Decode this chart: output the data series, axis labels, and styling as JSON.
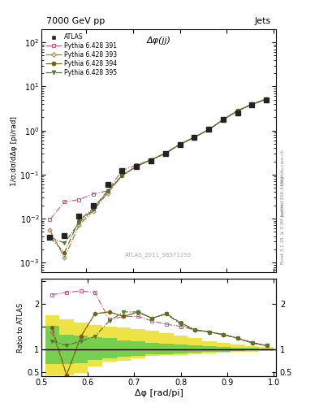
{
  "title_left": "7000 GeV pp",
  "title_right": "Jets",
  "xlabel": "Δφ [rad/pi]",
  "ylabel_main": "1/σ;dσ/dΔφ [pi/rad]",
  "ylabel_ratio": "Ratio to ATLAS",
  "annotation_main": "Δφ(jj)",
  "annotation_ref": "ATLAS_2011_S8971293",
  "right_label_top": "Rivet 3.1.10, ≥ 3.1M events",
  "right_label_bot": "[arXiv:1306.3436]",
  "mcplots": "mcplots.cern.ch",
  "atlas_x": [
    0.523,
    0.554,
    0.585,
    0.615,
    0.646,
    0.677,
    0.708,
    0.738,
    0.769,
    0.8,
    0.831,
    0.862,
    0.892,
    0.923,
    0.954,
    0.985
  ],
  "atlas_y": [
    0.0038,
    0.0042,
    0.0115,
    0.02,
    0.06,
    0.125,
    0.155,
    0.205,
    0.295,
    0.48,
    0.7,
    1.05,
    1.75,
    2.55,
    3.75,
    4.9
  ],
  "py391_x": [
    0.523,
    0.554,
    0.585,
    0.615,
    0.646,
    0.677,
    0.708,
    0.738,
    0.769,
    0.8,
    0.831,
    0.862,
    0.892,
    0.923,
    0.954,
    0.985
  ],
  "py391_y": [
    0.0095,
    0.024,
    0.027,
    0.036,
    0.043,
    0.125,
    0.165,
    0.215,
    0.295,
    0.48,
    0.7,
    1.05,
    1.75,
    2.8,
    3.9,
    5.1
  ],
  "py391_color": "#c06080",
  "py391_label": "Pythia 6.428 391",
  "py393_x": [
    0.523,
    0.554,
    0.585,
    0.615,
    0.646,
    0.677,
    0.708,
    0.738,
    0.769,
    0.8,
    0.831,
    0.862,
    0.892,
    0.923,
    0.954,
    0.985
  ],
  "py393_y": [
    0.0055,
    0.0013,
    0.007,
    0.015,
    0.038,
    0.095,
    0.155,
    0.215,
    0.305,
    0.48,
    0.7,
    1.05,
    1.75,
    2.8,
    4.0,
    5.2
  ],
  "py393_color": "#a07830",
  "py393_label": "Pythia 6.428 393",
  "py394_x": [
    0.523,
    0.554,
    0.585,
    0.615,
    0.646,
    0.677,
    0.708,
    0.738,
    0.769,
    0.8,
    0.831,
    0.862,
    0.892,
    0.923,
    0.954,
    0.985
  ],
  "py394_y": [
    0.0038,
    0.0017,
    0.009,
    0.017,
    0.043,
    0.095,
    0.155,
    0.215,
    0.305,
    0.49,
    0.71,
    1.05,
    1.75,
    2.8,
    4.0,
    5.2
  ],
  "py394_color": "#706020",
  "py394_label": "Pythia 6.428 394",
  "py395_x": [
    0.523,
    0.554,
    0.585,
    0.615,
    0.646,
    0.677,
    0.708,
    0.738,
    0.769,
    0.8,
    0.831,
    0.862,
    0.892,
    0.923,
    0.954,
    0.985
  ],
  "py395_y": [
    0.0038,
    0.0028,
    0.008,
    0.016,
    0.04,
    0.095,
    0.155,
    0.215,
    0.305,
    0.48,
    0.7,
    1.05,
    1.75,
    2.8,
    3.9,
    5.1
  ],
  "py395_color": "#507830",
  "py395_label": "Pythia 6.428 395",
  "ratio_x": [
    0.523,
    0.554,
    0.585,
    0.615,
    0.646,
    0.677,
    0.708,
    0.738,
    0.769,
    0.8,
    0.831,
    0.862,
    0.892,
    0.923,
    0.954,
    0.985
  ],
  "ratio_391_y": [
    2.2,
    2.25,
    2.28,
    2.25,
    1.65,
    1.72,
    1.72,
    1.62,
    1.55,
    1.5,
    1.42,
    1.38,
    1.32,
    1.24,
    1.14,
    1.08
  ],
  "ratio_393_y": [
    1.38,
    0.43,
    1.28,
    1.78,
    1.82,
    1.72,
    1.82,
    1.68,
    1.78,
    1.55,
    1.42,
    1.38,
    1.32,
    1.24,
    1.14,
    1.08
  ],
  "ratio_394_y": [
    1.48,
    0.43,
    1.28,
    1.78,
    1.82,
    1.72,
    1.82,
    1.68,
    1.78,
    1.58,
    1.43,
    1.38,
    1.32,
    1.24,
    1.14,
    1.08
  ],
  "ratio_395_y": [
    1.18,
    1.08,
    1.18,
    1.28,
    1.62,
    1.82,
    1.82,
    1.68,
    1.78,
    1.55,
    1.42,
    1.38,
    1.32,
    1.24,
    1.14,
    1.08
  ],
  "band_x_edges": [
    0.508,
    0.538,
    0.569,
    0.6,
    0.631,
    0.662,
    0.692,
    0.723,
    0.754,
    0.785,
    0.815,
    0.846,
    0.877,
    0.908,
    0.938,
    0.969,
    1.0
  ],
  "band_yellow_lo": [
    0.42,
    0.42,
    0.48,
    0.62,
    0.72,
    0.75,
    0.8,
    0.85,
    0.87,
    0.87,
    0.88,
    0.9,
    0.92,
    0.94,
    0.95,
    0.96
  ],
  "band_yellow_hi": [
    1.75,
    1.65,
    1.58,
    1.53,
    1.5,
    1.47,
    1.44,
    1.4,
    1.36,
    1.3,
    1.24,
    1.18,
    1.14,
    1.1,
    1.07,
    1.05
  ],
  "band_green_lo": [
    0.68,
    0.68,
    0.7,
    0.76,
    0.8,
    0.83,
    0.86,
    0.88,
    0.89,
    0.91,
    0.92,
    0.94,
    0.95,
    0.96,
    0.97,
    0.98
  ],
  "band_green_hi": [
    1.52,
    1.32,
    1.3,
    1.27,
    1.24,
    1.2,
    1.17,
    1.14,
    1.12,
    1.1,
    1.08,
    1.06,
    1.05,
    1.04,
    1.03,
    1.02
  ],
  "atlas_color": "#222222",
  "background": "#ffffff",
  "ylim_main": [
    0.0006,
    200
  ],
  "ylim_ratio": [
    0.4,
    2.55
  ],
  "xlim": [
    0.505,
    1.005
  ]
}
